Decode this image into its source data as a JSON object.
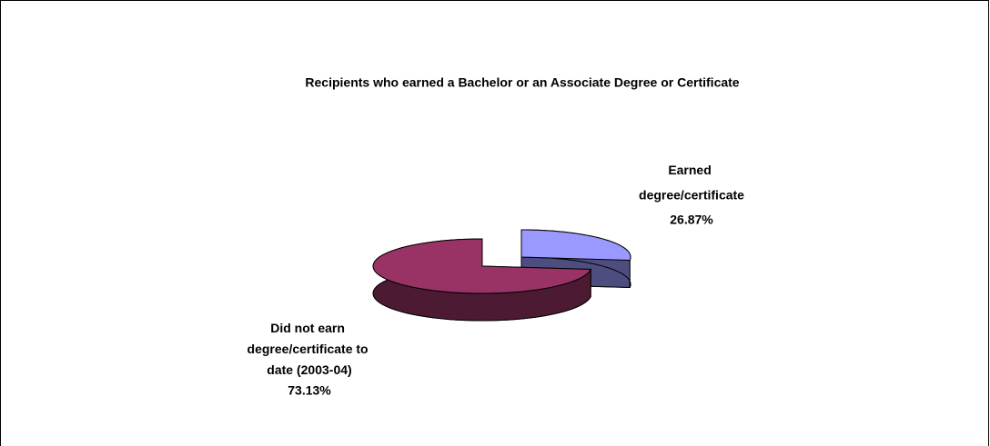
{
  "chart_data": {
    "type": "pie3d",
    "title": "Recipients who earned a Bachelor or an Associate Degree or Certificate",
    "categories": [
      "Earned degree/certificate",
      "Did not earn degree/certificate to date (2003-04)"
    ],
    "values": [
      26.87,
      73.13
    ],
    "value_labels": [
      "26.87%",
      "73.13%"
    ],
    "colors": [
      "#9999ff",
      "#993366"
    ],
    "side_colors": [
      "#4d4d80",
      "#4d1a33"
    ],
    "explode": [
      true,
      false
    ]
  }
}
